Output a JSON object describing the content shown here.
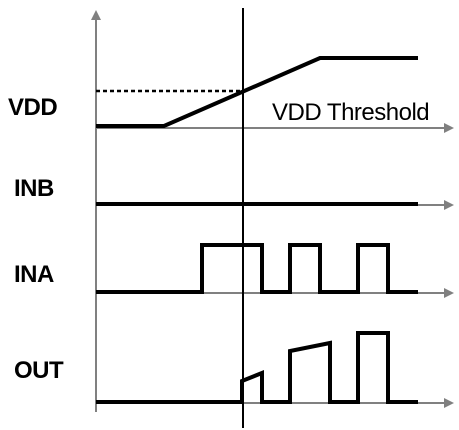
{
  "signals": {
    "vdd": "VDD",
    "inb": "INB",
    "ina": "INA",
    "out": "OUT"
  },
  "threshold_label": "VDD Threshold",
  "colors": {
    "axis": "#808080",
    "waveform": "#000000",
    "threshold": "#000000",
    "background": "#ffffff"
  }
}
